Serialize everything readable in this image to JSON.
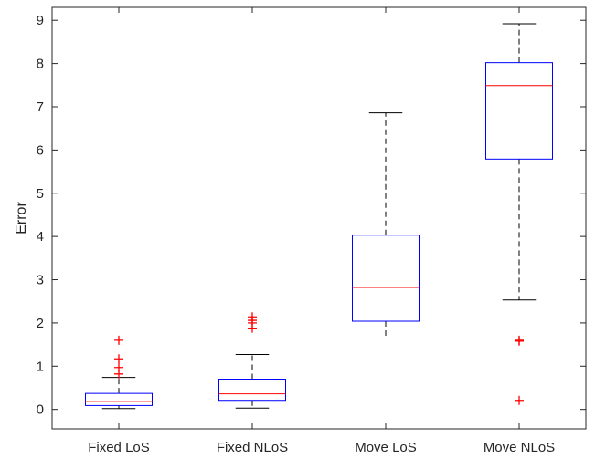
{
  "chart_data": {
    "type": "box",
    "title": "",
    "xlabel": "",
    "ylabel": "Error",
    "ylim": [
      -0.45,
      9.3
    ],
    "yticks": [
      0,
      1,
      2,
      3,
      4,
      5,
      6,
      7,
      8,
      9
    ],
    "grid": false,
    "categories": [
      "Fixed LoS",
      "Fixed NLoS",
      "Move LoS",
      "Move NLoS"
    ],
    "boxes": [
      {
        "category": "Fixed LoS",
        "whisker_low": 0.02,
        "q1": 0.09,
        "median": 0.18,
        "q3": 0.37,
        "whisker_high": 0.74,
        "outliers": [
          0.82,
          0.97,
          1.17,
          1.6
        ]
      },
      {
        "category": "Fixed NLoS",
        "whisker_low": 0.03,
        "q1": 0.21,
        "median": 0.36,
        "q3": 0.7,
        "whisker_high": 1.27,
        "outliers": [
          1.88,
          2.0,
          2.06,
          2.14
        ]
      },
      {
        "category": "Move LoS",
        "whisker_low": 1.63,
        "q1": 2.04,
        "median": 2.82,
        "q3": 4.03,
        "whisker_high": 6.86,
        "outliers": []
      },
      {
        "category": "Move NLoS",
        "whisker_low": 2.53,
        "q1": 5.79,
        "median": 7.49,
        "q3": 8.02,
        "whisker_high": 8.92,
        "outliers": [
          0.21,
          1.58,
          1.6
        ]
      }
    ],
    "colors": {
      "box": "#0000ff",
      "median": "#ff0000",
      "whisker": "#000000",
      "outlier": "#ff0000",
      "axis": "#262626"
    }
  }
}
